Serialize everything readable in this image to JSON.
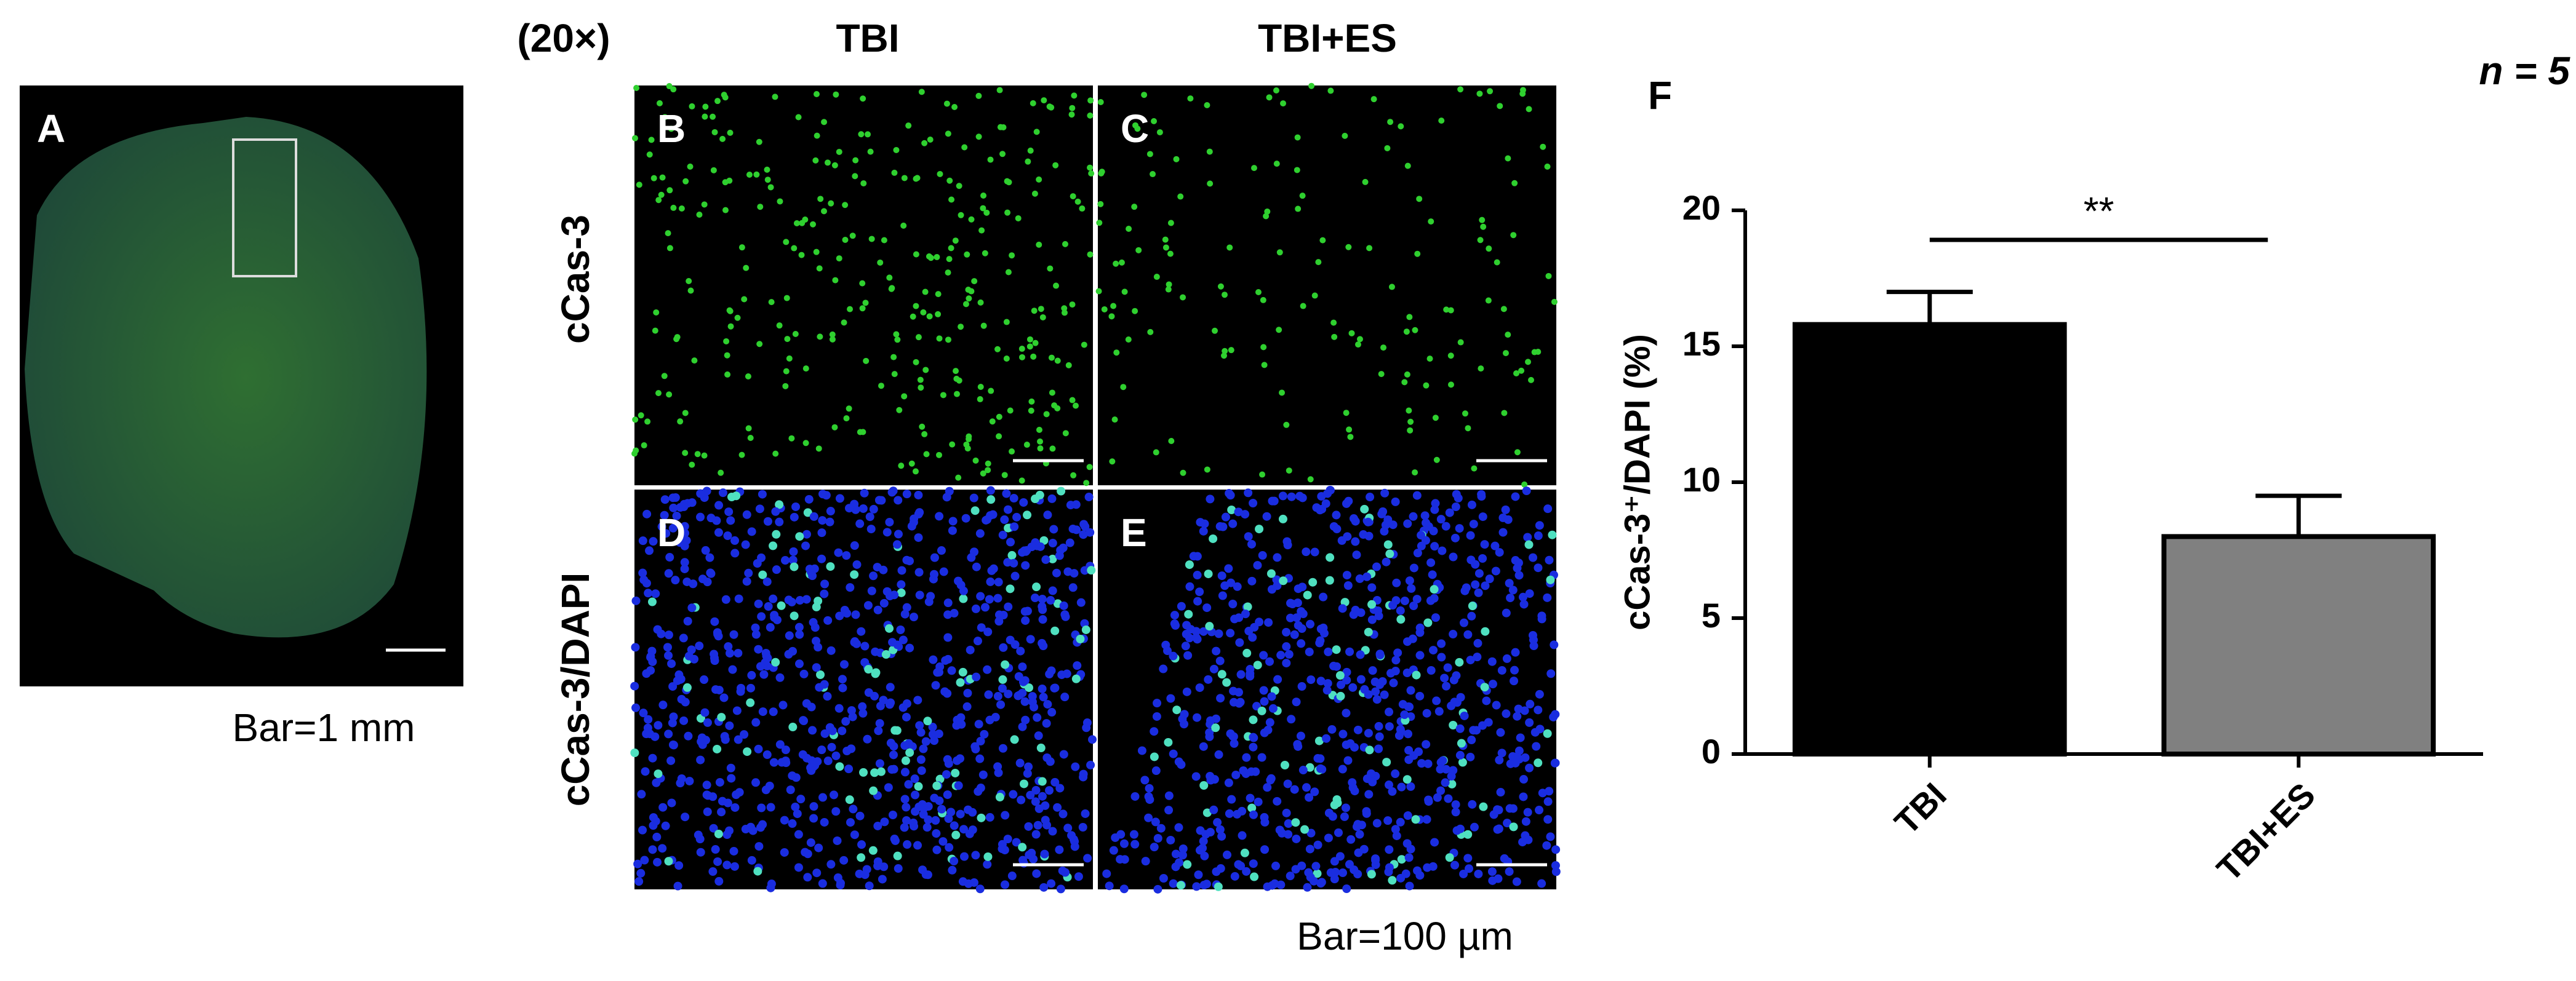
{
  "overview": {
    "label": "A",
    "scale_text": "Bar=1 mm"
  },
  "magnification": "(20×)",
  "columns": [
    "TBI",
    "TBI+ES"
  ],
  "rows": [
    "cCas-3",
    "cCas-3/DAPI"
  ],
  "image_labels": [
    "B",
    "C",
    "D",
    "E"
  ],
  "scale_text": "Bar=100 µm",
  "chart_data": {
    "type": "bar",
    "panel_label": "F",
    "annotation": "n = 5",
    "ylabel": "cCas-3⁺/DAPI (%)",
    "categories": [
      "TBI",
      "TBI+ES"
    ],
    "values": [
      15.8,
      8.0
    ],
    "errors": [
      1.2,
      1.5
    ],
    "colors": [
      "#000000",
      "#808080"
    ],
    "ylim": [
      0,
      20
    ],
    "yticks": [
      0,
      5,
      10,
      15,
      20
    ],
    "significance": "**"
  }
}
